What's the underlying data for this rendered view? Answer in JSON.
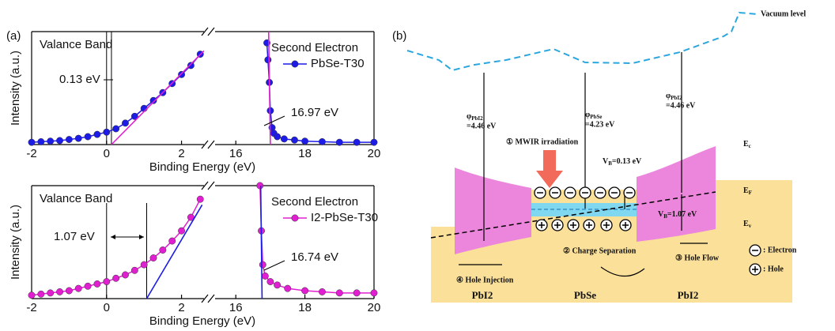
{
  "chart_data": [
    {
      "type": "line",
      "panel_label": "(a)",
      "xlabel": "Binding Energy (eV)",
      "ylabel": "Intensity (a.u.)",
      "x_segments": [
        {
          "xlim": [
            -2,
            2.6
          ],
          "xticks": [
            -2,
            0,
            2
          ]
        },
        {
          "xlim": [
            15.4,
            20
          ],
          "xticks": [
            16,
            18,
            20
          ]
        }
      ],
      "ylim": [
        0,
        1
      ],
      "region_label": "Valance Band",
      "second_label": "Second Electron",
      "gap_label": "0.13 eV",
      "cutoff_label": "16.97 eV",
      "markers": [
        0,
        0.13
      ],
      "series": [
        {
          "name": "PbSe-T30",
          "color": "#1c1ce6",
          "x": [
            -2,
            -1.75,
            -1.5,
            -1.25,
            -1,
            -0.75,
            -0.5,
            -0.25,
            0,
            0.25,
            0.5,
            0.75,
            1,
            1.25,
            1.5,
            1.75,
            2,
            2.25,
            2.5,
            16.9,
            16.93,
            16.97,
            17.0,
            17.05,
            17.1,
            17.2,
            17.4,
            17.7,
            18,
            18.5,
            19,
            19.5,
            20
          ],
          "values": [
            0.02,
            0.025,
            0.03,
            0.035,
            0.045,
            0.055,
            0.07,
            0.09,
            0.11,
            0.14,
            0.19,
            0.25,
            0.32,
            0.39,
            0.46,
            0.54,
            0.62,
            0.7,
            0.8,
            0.9,
            0.75,
            0.55,
            0.3,
            0.15,
            0.1,
            0.07,
            0.05,
            0.04,
            0.03,
            0.025,
            0.02,
            0.02,
            0.02
          ]
        }
      ],
      "fits": [
        {
          "color": "#e020d0",
          "x": [
            0.13,
            2.6
          ],
          "values": [
            0,
            0.83
          ]
        },
        {
          "color": "#e020d0",
          "x": [
            16.95,
            17.0
          ],
          "values": [
            1.0,
            0
          ]
        }
      ]
    },
    {
      "type": "line",
      "xlabel": "Binding Energy (eV)",
      "ylabel": "Intensity (a.u.)",
      "x_segments": [
        {
          "xlim": [
            -2,
            2.6
          ],
          "xticks": [
            -2,
            0,
            2
          ]
        },
        {
          "xlim": [
            15.4,
            20
          ],
          "xticks": [
            16,
            18,
            20
          ]
        }
      ],
      "ylim": [
        0,
        1
      ],
      "region_label": "Valance Band",
      "second_label": "Second Electron",
      "gap_label": "1.07 eV",
      "cutoff_label": "16.74 eV",
      "markers": [
        0,
        1.07
      ],
      "series": [
        {
          "name": "I2-PbSe-T30",
          "color": "#e020d0",
          "x": [
            -2,
            -1.75,
            -1.5,
            -1.25,
            -1,
            -0.75,
            -0.5,
            -0.25,
            0,
            0.25,
            0.5,
            0.75,
            1,
            1.25,
            1.5,
            1.75,
            2,
            2.25,
            2.5,
            16.7,
            16.74,
            16.78,
            16.85,
            17,
            17.2,
            17.5,
            18,
            18.5,
            19,
            19.5,
            20
          ],
          "values": [
            0.03,
            0.04,
            0.05,
            0.06,
            0.07,
            0.09,
            0.11,
            0.13,
            0.15,
            0.18,
            0.21,
            0.25,
            0.3,
            0.36,
            0.43,
            0.51,
            0.6,
            0.72,
            0.88,
            1.0,
            0.6,
            0.3,
            0.2,
            0.15,
            0.12,
            0.09,
            0.07,
            0.06,
            0.05,
            0.05,
            0.05
          ]
        }
      ],
      "fits": [
        {
          "color": "#1c1ce6",
          "x": [
            1.07,
            2.55
          ],
          "values": [
            0,
            0.83
          ]
        },
        {
          "color": "#1c1ce6",
          "x": [
            16.72,
            16.76
          ],
          "values": [
            1.0,
            0
          ]
        }
      ]
    }
  ],
  "diagram": {
    "panel_label": "(b)",
    "vacuum_label": "Vacuum level",
    "work_functions": [
      {
        "symbol": "φ",
        "sub": "PbI2",
        "value": "=4.46 eV"
      },
      {
        "symbol": "φ",
        "sub": "PbSe",
        "value": "=4.23 eV"
      },
      {
        "symbol": "φ",
        "sub": "PbI2",
        "value": "=4.46 eV"
      }
    ],
    "barriers": [
      {
        "symbol": "V",
        "sub": "B",
        "value": "=0.13 eV"
      },
      {
        "symbol": "V",
        "sub": "B",
        "value": "=1.07 eV"
      }
    ],
    "levels": [
      {
        "symbol": "E",
        "sub": "c"
      },
      {
        "symbol": "E",
        "sub": "F"
      },
      {
        "symbol": "E",
        "sub": "v"
      }
    ],
    "steps": [
      "① MWIR irradiation",
      "② Charge Separation",
      "③ Hole Flow",
      "④ Hole Injection"
    ],
    "materials": [
      "PbI2",
      "PbSe",
      "PbI2"
    ],
    "legend": [
      ": Electron",
      ": Hole"
    ]
  }
}
